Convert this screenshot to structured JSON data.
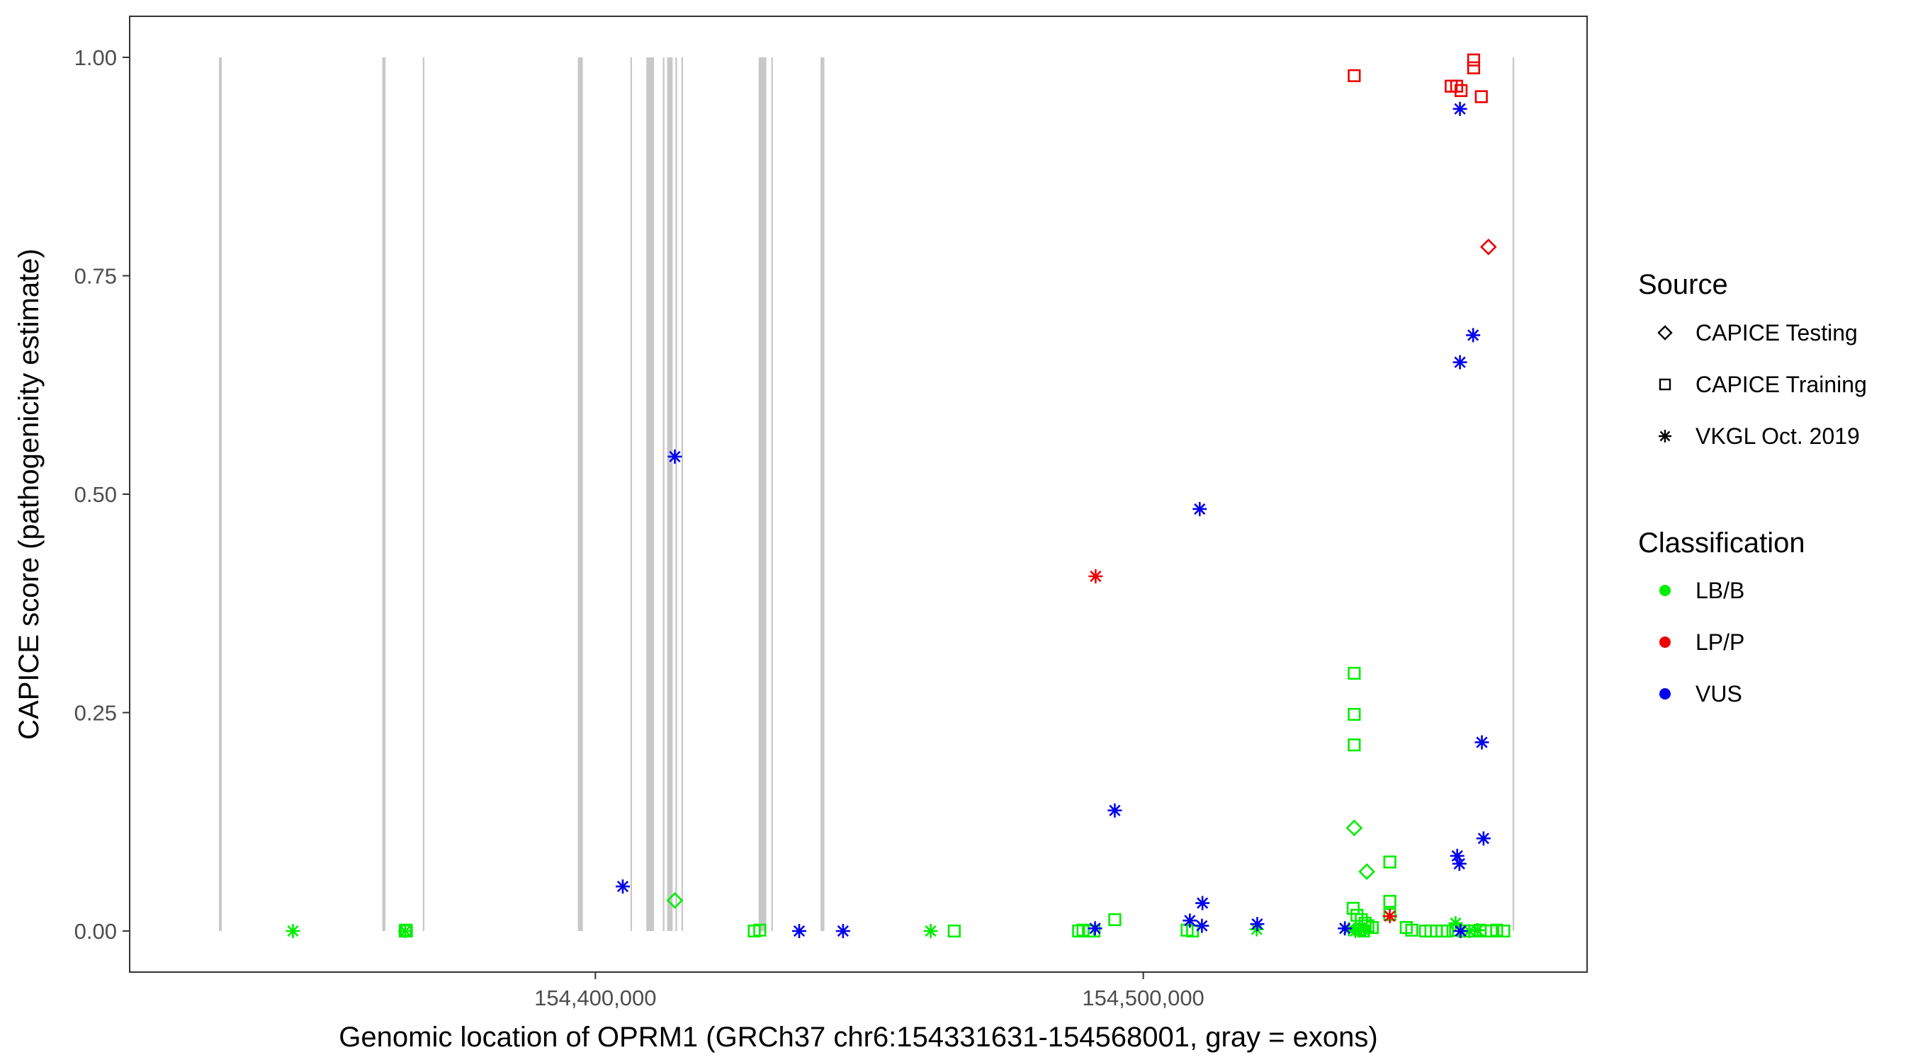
{
  "chart_data": {
    "type": "scatter",
    "title": "",
    "xlabel": "Genomic location of OPRM1 (GRCh37 chr6:154331631-154568001, gray = exons)",
    "ylabel": "CAPICE score (pathogenicity estimate)",
    "xlim": [
      154315000,
      154581000
    ],
    "ylim": [
      -0.047,
      1.047
    ],
    "grid": false,
    "x_ticks": [
      154400000,
      154500000
    ],
    "x_tick_labels": [
      "154,400,000",
      "154,500,000"
    ],
    "y_ticks": [
      0,
      0.25,
      0.5,
      0.75,
      1
    ],
    "y_tick_labels": [
      "0.00",
      "0.25",
      "0.50",
      "0.75",
      "1.00"
    ],
    "exons": [
      {
        "start": 154331300,
        "end": 154331800
      },
      {
        "start": 154361100,
        "end": 154361700
      },
      {
        "start": 154368500,
        "end": 154368700
      },
      {
        "start": 154396800,
        "end": 154397700
      },
      {
        "start": 154406400,
        "end": 154406600
      },
      {
        "start": 154409300,
        "end": 154410700
      },
      {
        "start": 154412300,
        "end": 154412600
      },
      {
        "start": 154413100,
        "end": 154414100
      },
      {
        "start": 154414600,
        "end": 154414900
      },
      {
        "start": 154415700,
        "end": 154416000
      },
      {
        "start": 154429800,
        "end": 154431200
      },
      {
        "start": 154432100,
        "end": 154432400
      },
      {
        "start": 154441100,
        "end": 154441800
      },
      {
        "start": 154567400,
        "end": 154567700
      }
    ],
    "legend": {
      "position": "right",
      "source_title": "Source",
      "source_entries": [
        {
          "label": "CAPICE Testing",
          "shape": "diamond"
        },
        {
          "label": "CAPICE Training",
          "shape": "square"
        },
        {
          "label": "VKGL Oct. 2019",
          "shape": "asterisk"
        }
      ],
      "classification_title": "Classification",
      "classification_entries": [
        {
          "label": "LB/B",
          "color": "#00ee00"
        },
        {
          "label": "LP/P",
          "color": "#ee0000"
        },
        {
          "label": "VUS",
          "color": "#0000ee"
        }
      ]
    },
    "series": [
      {
        "source": "CAPICE Testing",
        "classification": "LB/B",
        "shape": "diamond",
        "color": "#00ee00",
        "points": [
          [
            154414500,
            0.035
          ],
          [
            154538500,
            0.118
          ],
          [
            154540800,
            0.068
          ]
        ]
      },
      {
        "source": "CAPICE Testing",
        "classification": "LP/P",
        "shape": "diamond",
        "color": "#ee0000",
        "points": [
          [
            154563000,
            0.783
          ]
        ]
      },
      {
        "source": "CAPICE Training",
        "classification": "LB/B",
        "shape": "square",
        "color": "#00ee00",
        "points": [
          [
            154365300,
            0.0
          ],
          [
            154365400,
            0.001
          ],
          [
            154365500,
            0.0
          ],
          [
            154429000,
            0.0
          ],
          [
            154430000,
            0.001
          ],
          [
            154465500,
            0.0
          ],
          [
            154488200,
            0.0
          ],
          [
            154489000,
            0.001
          ],
          [
            154490000,
            0.0
          ],
          [
            154491000,
            0.0
          ],
          [
            154494800,
            0.013
          ],
          [
            154508000,
            0.001
          ],
          [
            154509000,
            0.0
          ],
          [
            154538500,
            0.295
          ],
          [
            154538500,
            0.248
          ],
          [
            154538500,
            0.213
          ],
          [
            154538300,
            0.026
          ],
          [
            154539000,
            0.018
          ],
          [
            154539800,
            0.013
          ],
          [
            154540500,
            0.009
          ],
          [
            154541000,
            0.006
          ],
          [
            154541800,
            0.004
          ],
          [
            154539500,
            0.002
          ],
          [
            154540200,
            0.0
          ],
          [
            154545000,
            0.079
          ],
          [
            154545000,
            0.034
          ],
          [
            154545000,
            0.019
          ],
          [
            154548000,
            0.004
          ],
          [
            154549000,
            0.001
          ],
          [
            154551500,
            0.0
          ],
          [
            154552500,
            0.0
          ],
          [
            154553500,
            0.0
          ],
          [
            154554500,
            0.0
          ],
          [
            154555500,
            0.0
          ],
          [
            154557000,
            0.001
          ],
          [
            154558500,
            0.0
          ],
          [
            154559500,
            0.0
          ],
          [
            154560500,
            0.0
          ],
          [
            154561500,
            0.001
          ],
          [
            154562500,
            0.0
          ],
          [
            154563500,
            0.0
          ],
          [
            154564500,
            0.001
          ],
          [
            154565800,
            0.0
          ]
        ]
      },
      {
        "source": "CAPICE Training",
        "classification": "LP/P",
        "shape": "square",
        "color": "#ee0000",
        "points": [
          [
            154538500,
            0.979
          ],
          [
            154556200,
            0.967
          ],
          [
            154557200,
            0.967
          ],
          [
            154558000,
            0.962
          ],
          [
            154560300,
            0.997
          ],
          [
            154560300,
            0.988
          ],
          [
            154561700,
            0.955
          ]
        ]
      },
      {
        "source": "VKGL Oct. 2019",
        "classification": "LB/B",
        "shape": "asterisk",
        "color": "#00ee00",
        "points": [
          [
            154344800,
            0.0
          ],
          [
            154365300,
            0.0
          ],
          [
            154461200,
            0.0
          ],
          [
            154520700,
            0.002
          ],
          [
            154537500,
            0.002
          ],
          [
            154538700,
            0.0
          ],
          [
            154539500,
            0.004
          ],
          [
            154540300,
            0.001
          ],
          [
            154557000,
            0.009
          ],
          [
            154559500,
            0.0
          ],
          [
            154561000,
            0.001
          ]
        ]
      },
      {
        "source": "VKGL Oct. 2019",
        "classification": "LP/P",
        "shape": "asterisk",
        "color": "#ee0000",
        "points": [
          [
            154491300,
            0.406
          ],
          [
            154545000,
            0.017
          ]
        ]
      },
      {
        "source": "VKGL Oct. 2019",
        "classification": "VUS",
        "shape": "asterisk",
        "color": "#0000ee",
        "points": [
          [
            154405000,
            0.051
          ],
          [
            154414500,
            0.543
          ],
          [
            154437200,
            0.0
          ],
          [
            154445200,
            0.0
          ],
          [
            154491200,
            0.003
          ],
          [
            154494800,
            0.138
          ],
          [
            154508500,
            0.012
          ],
          [
            154510300,
            0.483
          ],
          [
            154510800,
            0.032
          ],
          [
            154510700,
            0.006
          ],
          [
            154520800,
            0.008
          ],
          [
            154536800,
            0.003
          ],
          [
            154557800,
            0.941
          ],
          [
            154557800,
            0.651
          ],
          [
            154560200,
            0.682
          ],
          [
            154561800,
            0.216
          ],
          [
            154562100,
            0.106
          ],
          [
            154557300,
            0.086
          ],
          [
            154557700,
            0.077
          ],
          [
            154557900,
            0.0
          ]
        ]
      }
    ]
  }
}
